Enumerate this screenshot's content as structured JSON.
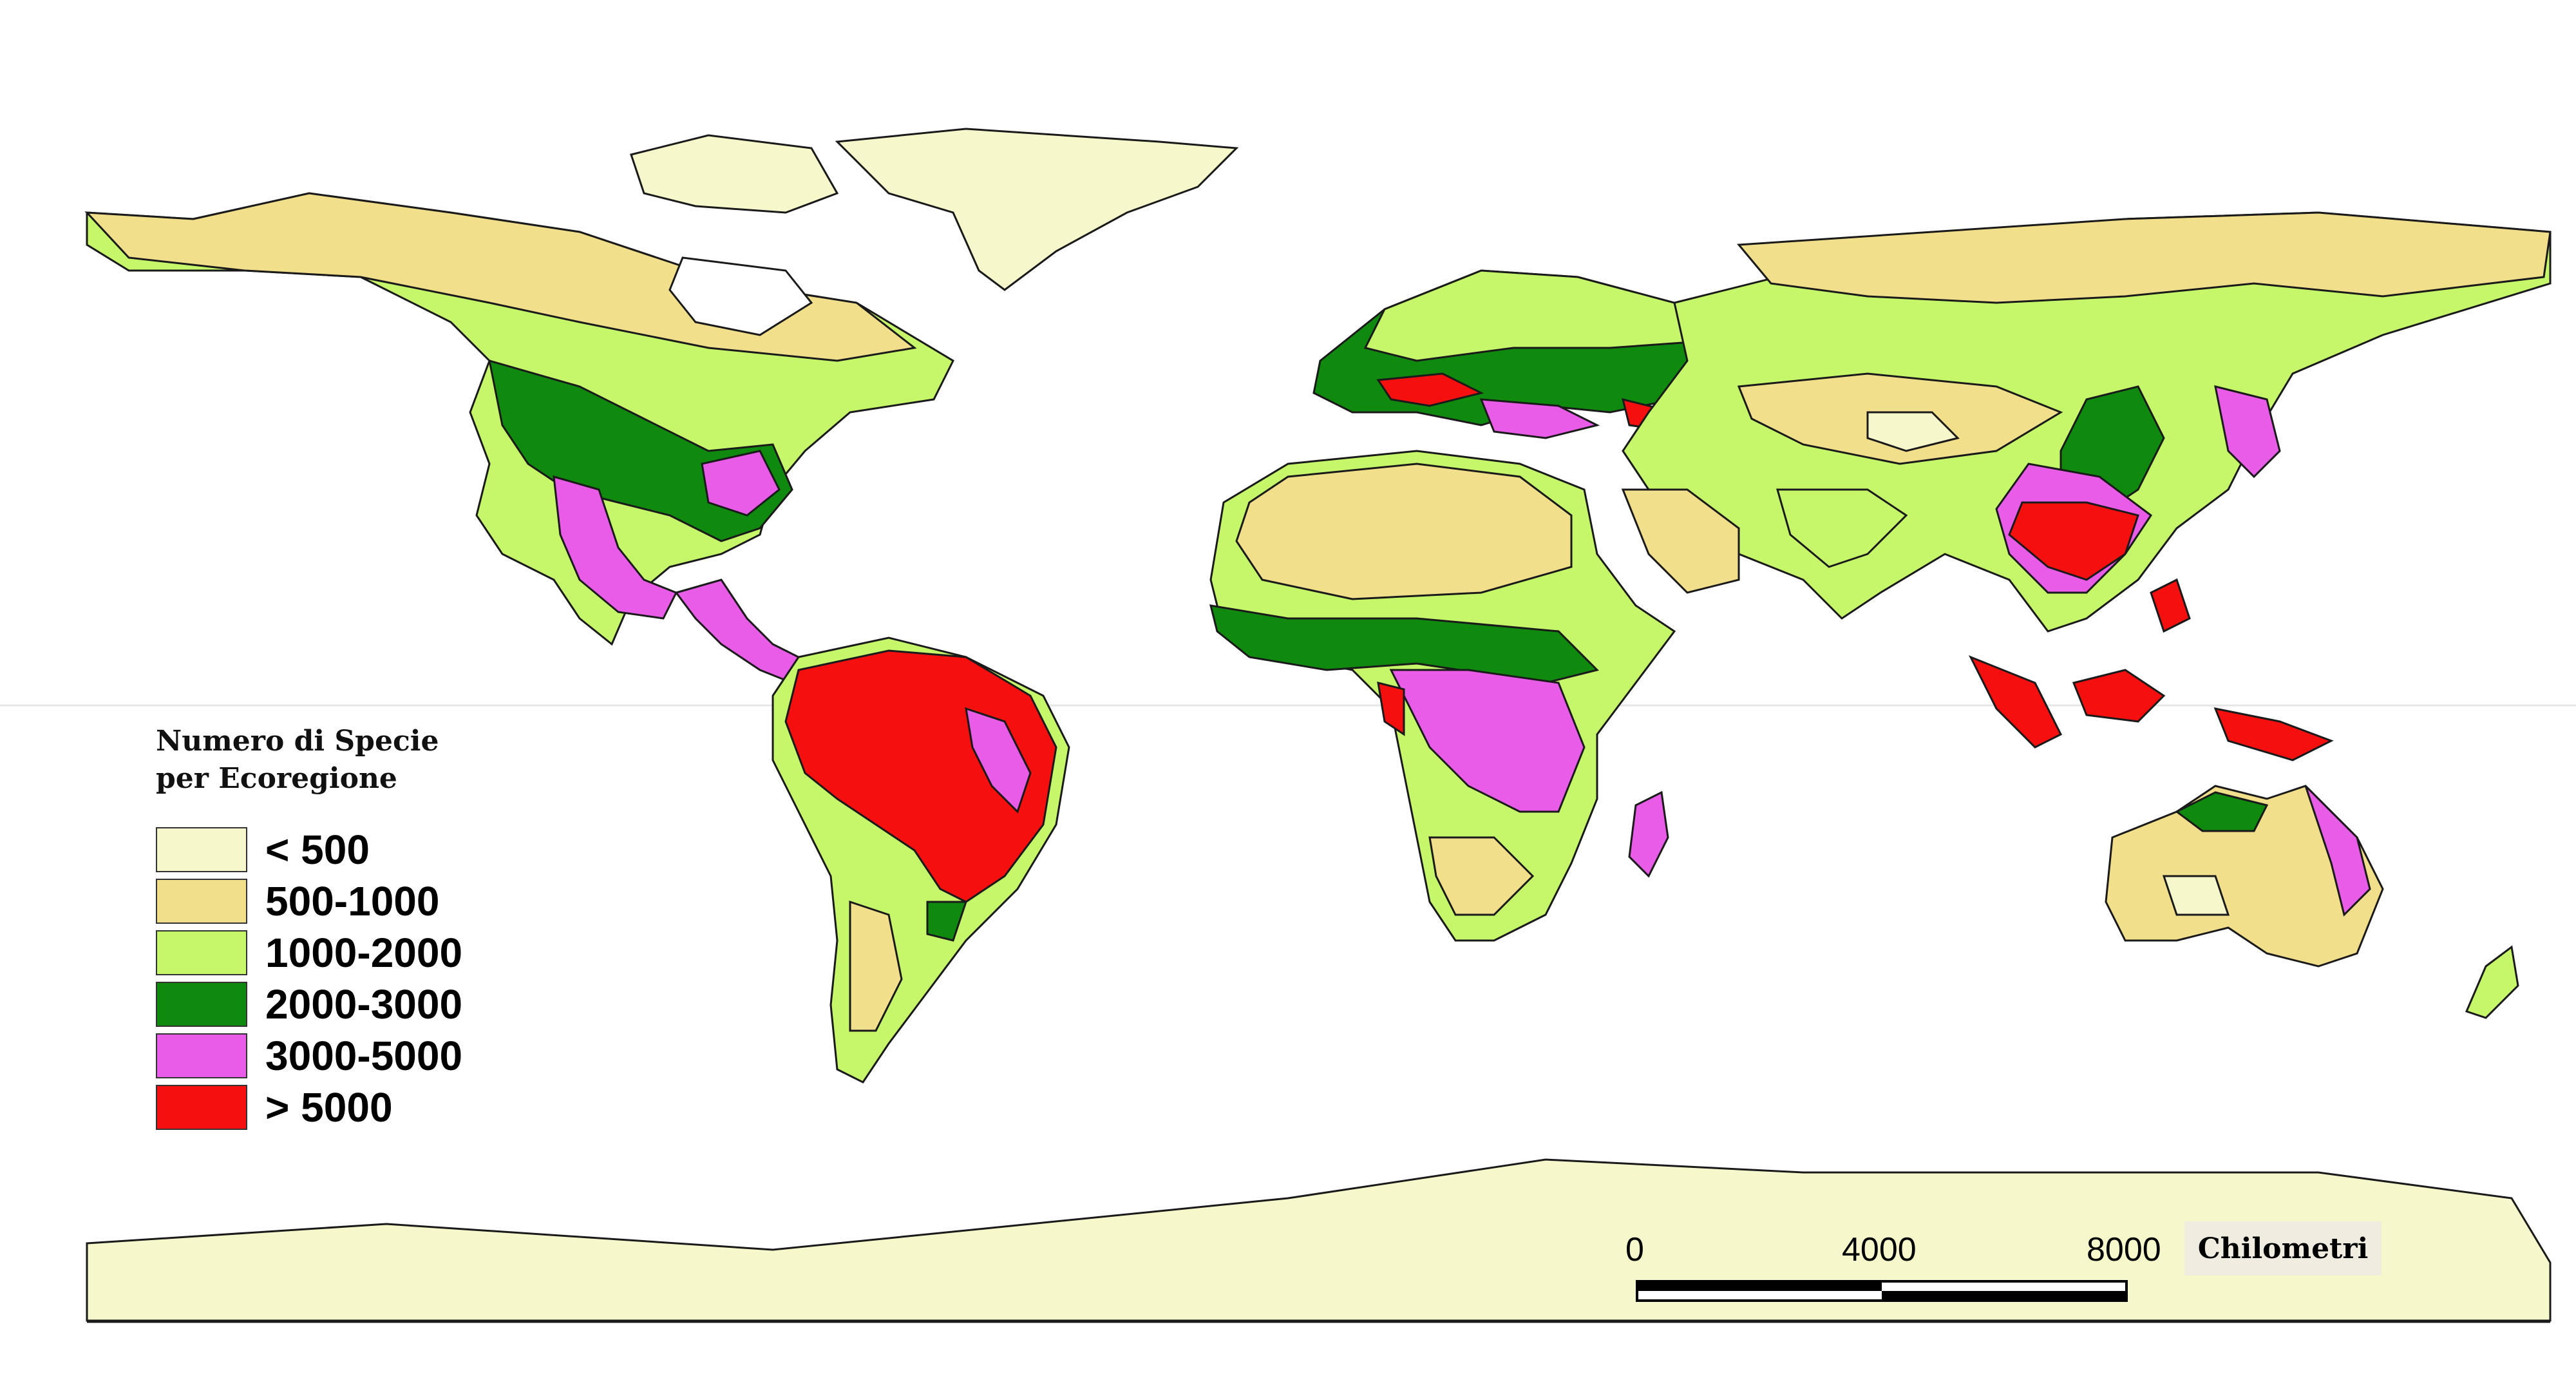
{
  "legend": {
    "title_line1": "Numero di Specie",
    "title_line2": "per Ecoregione",
    "classes": [
      {
        "label": "< 500",
        "color": "#f7f7cc"
      },
      {
        "label": "500-1000",
        "color": "#f2df8c"
      },
      {
        "label": "1000-2000",
        "color": "#c6f76a"
      },
      {
        "label": "2000-3000",
        "color": "#0f8a0f"
      },
      {
        "label": "3000-5000",
        "color": "#e85ce8"
      },
      {
        "label": "> 5000",
        "color": "#f50f0f"
      }
    ]
  },
  "scale_bar": {
    "labels": [
      "0",
      "4000",
      "8000"
    ],
    "unit": "Chilometri"
  },
  "colors": {
    "ocean": "#ffffff",
    "outline": "#1a1a1a",
    "antarctica": "#f7f7cc"
  }
}
